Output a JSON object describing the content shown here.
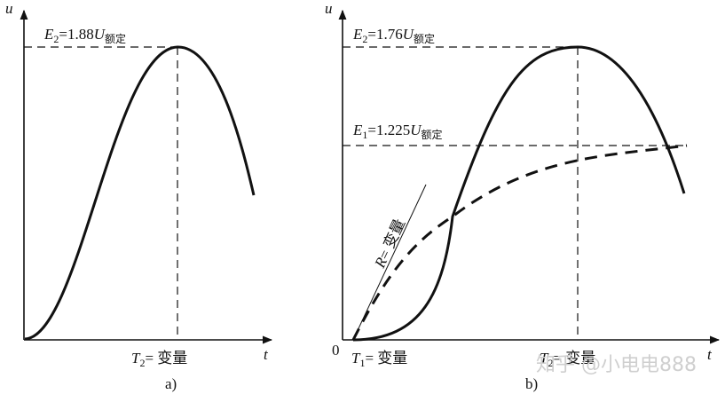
{
  "panel_a": {
    "axis_y": "u",
    "axis_x": "t",
    "peak_label": {
      "var": "E",
      "sub": "2",
      "value": "=1.88",
      "unit": "U",
      "unit_sub": "额定"
    },
    "period_label": {
      "var": "T",
      "sub": "2",
      "text": "= 变量"
    },
    "caption": "a)"
  },
  "panel_b": {
    "axis_y": "u",
    "axis_x": "t",
    "origin": "0",
    "peak_label": {
      "var": "E",
      "sub": "2",
      "value": "=1.76",
      "unit": "U",
      "unit_sub": "额定"
    },
    "level_label": {
      "var": "E",
      "sub": "1",
      "value": "=1.225",
      "unit": "U",
      "unit_sub": "额定"
    },
    "tangent_label": {
      "var": "R",
      "text": "= 变量"
    },
    "t1_label": {
      "var": "T",
      "sub": "1",
      "text": "= 变量"
    },
    "t2_label": {
      "var": "T",
      "sub": "2",
      "text": "= 变量"
    },
    "caption": "b)"
  },
  "watermark": "知乎 @小电电888"
}
